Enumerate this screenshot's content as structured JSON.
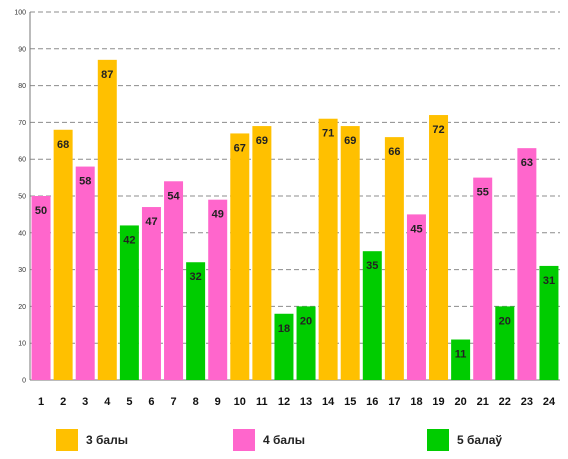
{
  "chart_data": {
    "type": "bar",
    "categories": [
      "1",
      "2",
      "3",
      "4",
      "5",
      "6",
      "7",
      "8",
      "9",
      "10",
      "11",
      "12",
      "13",
      "14",
      "15",
      "16",
      "17",
      "18",
      "19",
      "20",
      "21",
      "22",
      "23",
      "24"
    ],
    "values": [
      50,
      68,
      58,
      87,
      42,
      47,
      54,
      32,
      49,
      67,
      69,
      18,
      20,
      71,
      69,
      35,
      66,
      45,
      72,
      11,
      55,
      20,
      63,
      31
    ],
    "groups": [
      "4 балы",
      "3 балы",
      "4 балы",
      "3 балы",
      "5 балаў",
      "4 балы",
      "4 балы",
      "5 балаў",
      "4 балы",
      "3 балы",
      "3 балы",
      "5 балаў",
      "5 балаў",
      "3 балы",
      "3 балы",
      "5 балаў",
      "3 балы",
      "4 балы",
      "3 балы",
      "5 балаў",
      "4 балы",
      "5 балаў",
      "4 балы",
      "5 балаў"
    ],
    "ylim": [
      0,
      100
    ],
    "yticks": [
      0,
      10,
      20,
      30,
      40,
      50,
      60,
      70,
      80,
      90,
      100
    ],
    "grid": true,
    "legend_placement": "bottom",
    "legend": [
      {
        "name": "3 балы",
        "color": "#FFC000"
      },
      {
        "name": "4 балы",
        "color": "#FF66CC"
      },
      {
        "name": "5 балаў",
        "color": "#00CC00"
      }
    ]
  }
}
